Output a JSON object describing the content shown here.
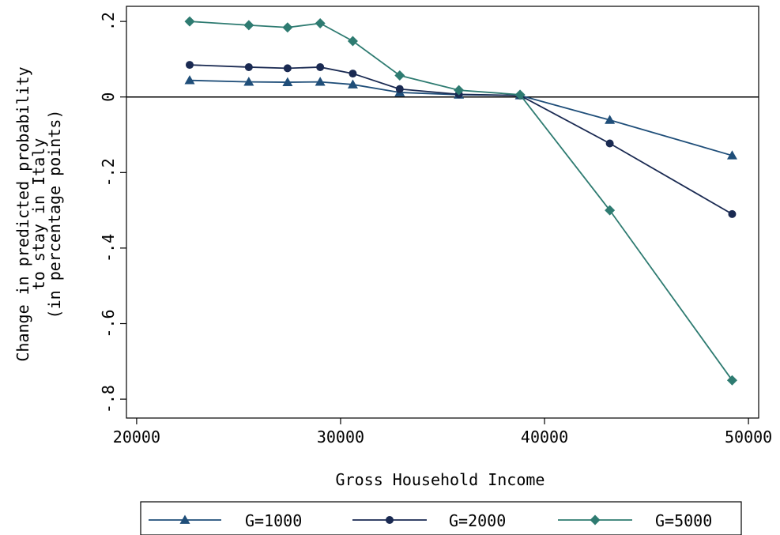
{
  "chart_data": {
    "type": "line",
    "xlabel": "Gross Household Income",
    "ylabel_lines": [
      "Change in predicted probability",
      "to stay in Italy",
      "(in percentage points)"
    ],
    "xlim": [
      19500,
      50500
    ],
    "ylim": [
      -0.85,
      0.24
    ],
    "xticks": [
      20000,
      30000,
      40000,
      50000
    ],
    "xtick_labels": [
      "20000",
      "30000",
      "40000",
      "50000"
    ],
    "yticks": [
      0.2,
      0,
      -0.2,
      -0.4,
      -0.6,
      -0.8
    ],
    "ytick_labels": [
      ".2",
      "0",
      "-.2",
      "-.4",
      "-.6",
      "-.8"
    ],
    "reference_line_y": 0,
    "grid": false,
    "legend_position": "bottom",
    "x": [
      22600,
      25500,
      27400,
      29000,
      30600,
      32900,
      35800,
      38800,
      43200,
      49200
    ],
    "series": [
      {
        "name": "G=1000",
        "marker": "triangle",
        "color": "#1f4e79",
        "values": [
          0.044,
          0.04,
          0.039,
          0.04,
          0.033,
          0.012,
          0.006,
          0.004,
          -0.061,
          -0.155
        ]
      },
      {
        "name": "G=2000",
        "marker": "circle",
        "color": "#1a2a52",
        "values": [
          0.085,
          0.079,
          0.076,
          0.079,
          0.062,
          0.021,
          0.007,
          0.004,
          -0.123,
          -0.31
        ]
      },
      {
        "name": "G=5000",
        "marker": "diamond",
        "color": "#2e7b71",
        "values": [
          0.2,
          0.19,
          0.184,
          0.195,
          0.148,
          0.057,
          0.018,
          0.006,
          -0.3,
          -0.75
        ]
      }
    ]
  }
}
